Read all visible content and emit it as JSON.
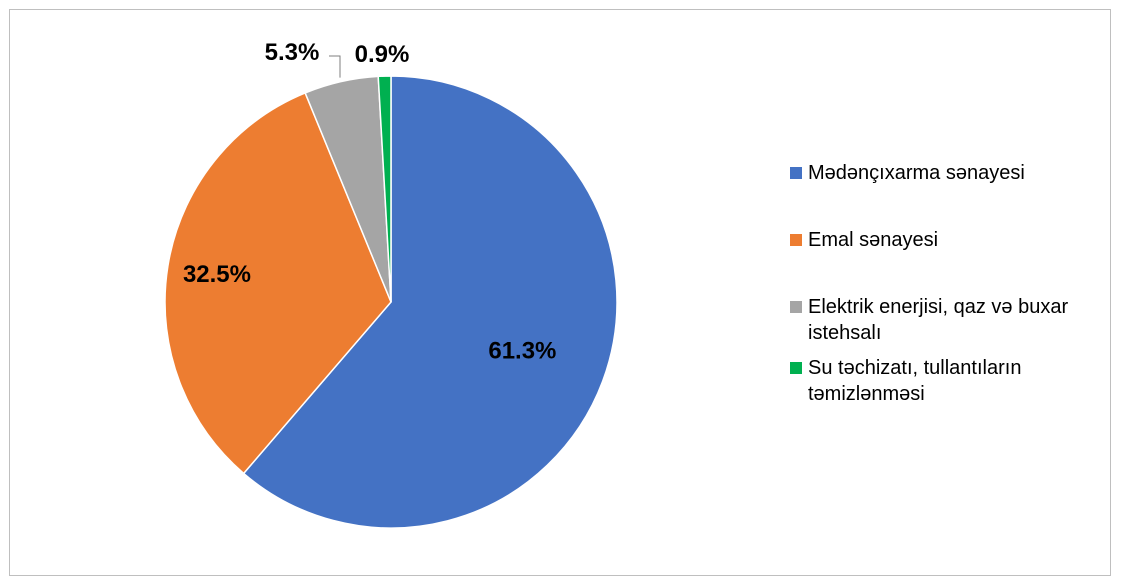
{
  "chart_data": {
    "type": "pie",
    "title": "",
    "unit": "%",
    "legend_position": "right",
    "slices": [
      {
        "label": "Mədənçıxarma sənayesi",
        "value": 61.3,
        "value_label": "61.3%",
        "color": "#4472C4"
      },
      {
        "label": "Emal sənayesi",
        "value": 32.5,
        "value_label": "32.5%",
        "color": "#ED7D31"
      },
      {
        "label": "Elektrik enerjisi, qaz və buxar istehsalı",
        "value": 5.3,
        "value_label": "5.3%",
        "color": "#A5A5A5"
      },
      {
        "label": "Su təchizatı, tullantıların təmizlənməsi",
        "value": 0.9,
        "value_label": "0.9%",
        "color": "#00B050"
      }
    ]
  }
}
